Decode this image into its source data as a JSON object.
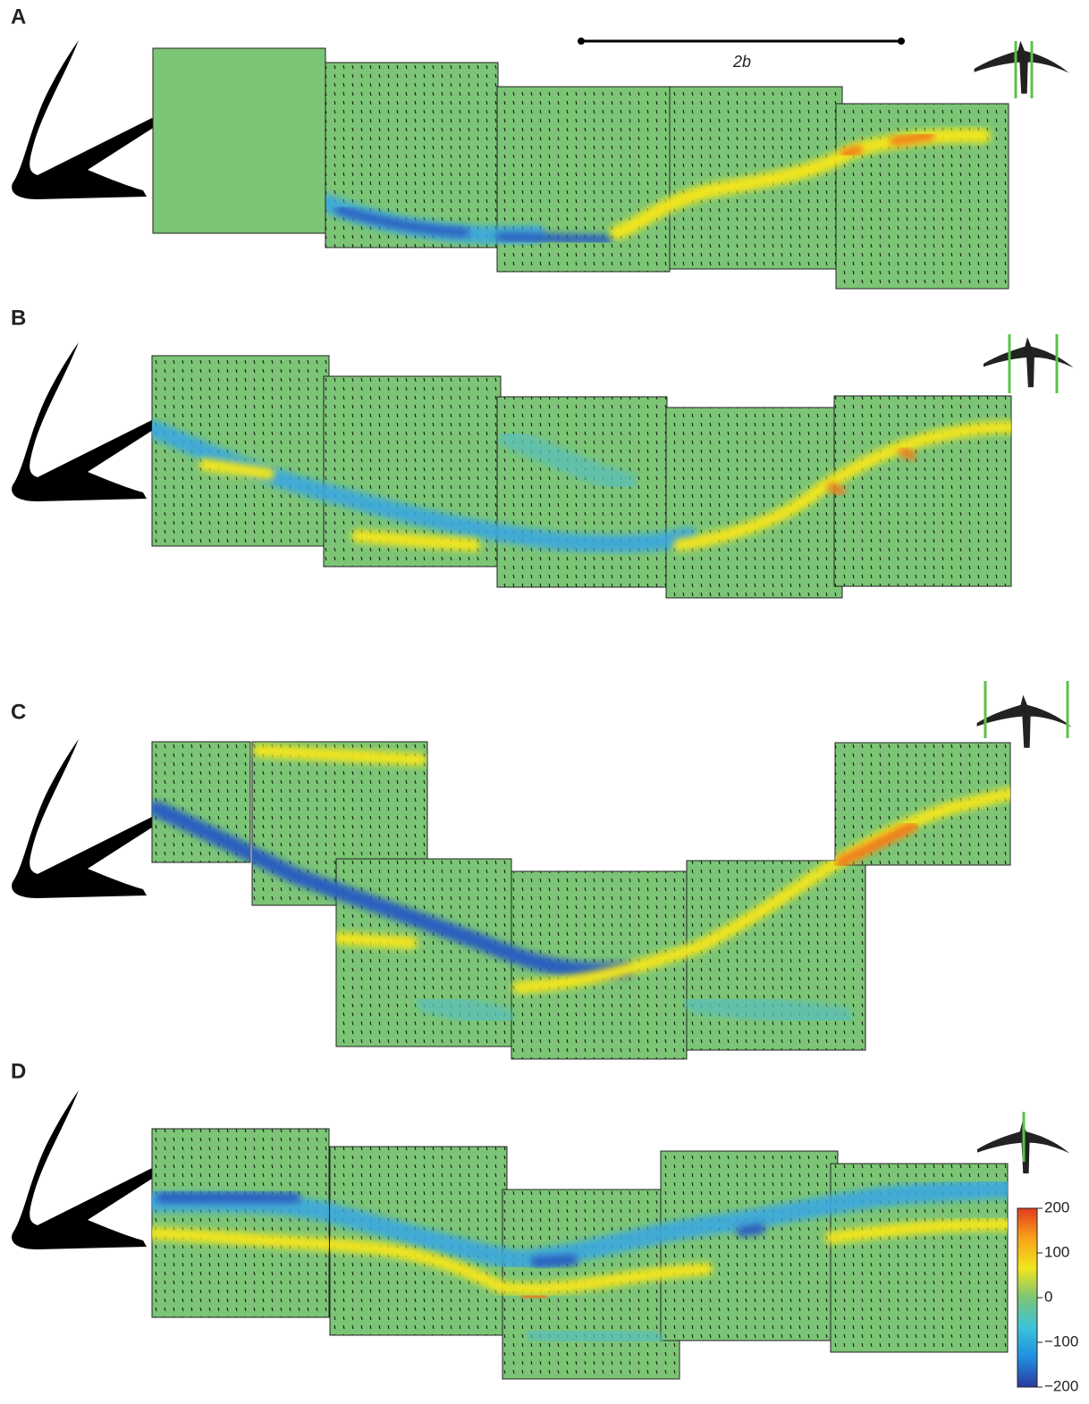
{
  "panels": [
    {
      "label": "A"
    },
    {
      "label": "B"
    },
    {
      "label": "C"
    },
    {
      "label": "D"
    }
  ],
  "scale_bar": {
    "label": "2b"
  },
  "colorbar": {
    "lim": [
      -200,
      200
    ],
    "ticks": [
      200,
      100,
      0,
      {
        "value": -100,
        "label": "−100"
      },
      {
        "value": -200,
        "label": "−200"
      }
    ],
    "colors": [
      "#2b3a9e",
      "#1f8fe0",
      "#3cc3d8",
      "#7cc576",
      "#f2e51c",
      "#f7a21b",
      "#e23a1e"
    ]
  }
}
